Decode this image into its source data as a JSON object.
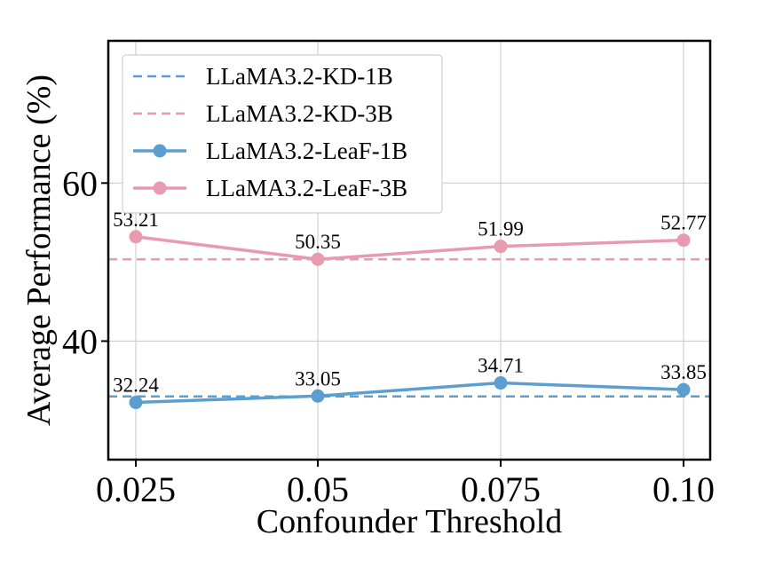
{
  "chart_data": {
    "type": "line",
    "categories": [
      "0.025",
      "0.05",
      "0.075",
      "0.10"
    ],
    "xlabel": "Confounder Threshold",
    "ylabel": "Average Performance (%)",
    "ylim": [
      25,
      78
    ],
    "yticks": [
      40,
      60
    ],
    "grid": true,
    "legend_position": "top-left",
    "series": [
      {
        "name": "LLaMA3.2-KD-1B",
        "style": "dashed",
        "color": "#5b9fd0",
        "constant": 33.0
      },
      {
        "name": "LLaMA3.2-KD-3B",
        "style": "dashed",
        "color": "#e89aae",
        "constant": 50.35
      },
      {
        "name": "LLaMA3.2-LeaF-1B",
        "style": "solid-marker",
        "color": "#5b9fd0",
        "values": [
          32.24,
          33.05,
          34.71,
          33.85
        ],
        "labels": [
          "32.24",
          "33.05",
          "34.71",
          "33.85"
        ]
      },
      {
        "name": "LLaMA3.2-LeaF-3B",
        "style": "solid-marker",
        "color": "#e89aae",
        "values": [
          53.21,
          50.35,
          51.99,
          52.77
        ],
        "labels": [
          "53.21",
          "50.35",
          "51.99",
          "52.77"
        ]
      }
    ]
  }
}
